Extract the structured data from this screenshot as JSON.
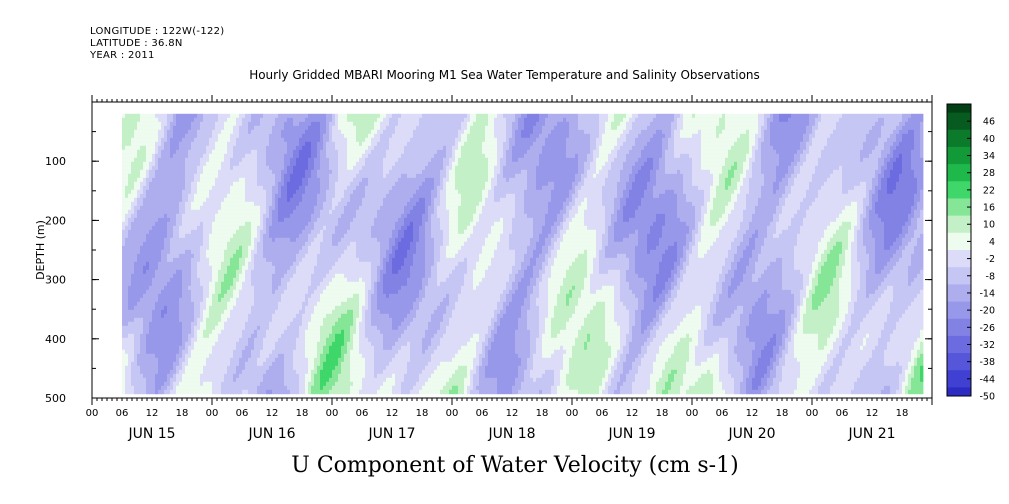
{
  "header": {
    "longitude": "LONGITUDE : 122W(-122)",
    "latitude": "LATITUDE : 36.8N",
    "year": "YEAR : 2011"
  },
  "colors": {
    "positive_ramp": [
      "#eefbef",
      "#c4f0c8",
      "#86e697",
      "#3fd66a",
      "#1fb84a",
      "#129a38",
      "#0b7a2b",
      "#075a20",
      "#033f15"
    ],
    "negative_ramp": [
      "#dcdcf8",
      "#c6c6f4",
      "#aeaeef",
      "#9898ea",
      "#8282e4",
      "#6c6ce0",
      "#5656da",
      "#4040d2",
      "#2c2cc2",
      "#1b1ba6",
      "#0e0e88",
      "#05056a"
    ]
  },
  "chart_data": {
    "type": "heatmap",
    "title": "Hourly Gridded MBARI Mooring M1 Sea Water Temperature and Salinity Observations",
    "xlabel": "U Component of Water Velocity (cm s-1)",
    "ylabel": "DEPTH (m)",
    "y_ticks": [
      "100",
      "200",
      "300",
      "400",
      "500"
    ],
    "y_tick_values": [
      100,
      200,
      300,
      400,
      500
    ],
    "ylim": [
      500,
      0
    ],
    "x_hour_ticks": [
      "00",
      "06",
      "12",
      "18",
      "00",
      "06",
      "12",
      "18",
      "00",
      "06",
      "12",
      "18",
      "00",
      "06",
      "12",
      "18",
      "00",
      "06",
      "12",
      "18",
      "00",
      "06",
      "12",
      "18",
      "00",
      "06",
      "12",
      "18"
    ],
    "x_day_labels": [
      "JUN 15",
      "JUN 16",
      "JUN 17",
      "JUN 18",
      "JUN 19",
      "JUN 20",
      "JUN 21"
    ],
    "colorbar_labels": [
      "46",
      "40",
      "34",
      "28",
      "22",
      "16",
      "10",
      "4",
      "-2",
      "-8",
      "-14",
      "-20",
      "-26",
      "-32",
      "-38",
      "-44",
      "-50"
    ],
    "colorbar_range": [
      -50,
      52
    ],
    "data_depth_range": [
      20,
      490
    ],
    "data_time_range_hours": [
      6,
      166
    ]
  }
}
